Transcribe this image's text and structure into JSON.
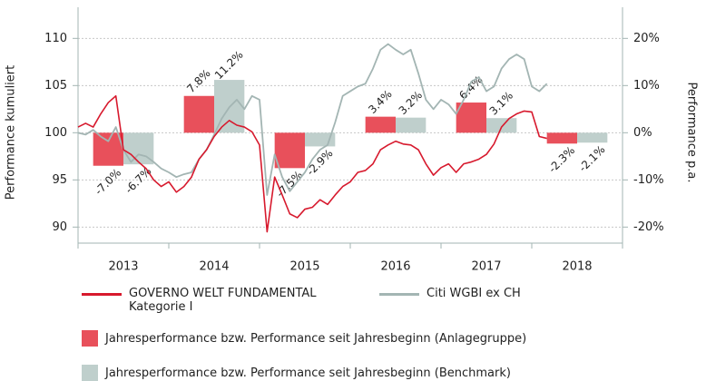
{
  "chart_data": {
    "type": "combo",
    "categories": [
      "2013",
      "2014",
      "2015",
      "2016",
      "2017",
      "2018"
    ],
    "x": [
      0,
      1,
      2,
      3,
      4,
      5,
      6,
      7,
      8,
      9,
      10,
      11,
      12,
      13,
      14,
      15,
      16,
      17,
      18,
      19,
      20,
      21,
      22,
      23,
      24,
      25,
      26,
      27,
      28,
      29,
      30,
      31,
      32,
      33,
      34,
      35,
      36,
      37,
      38,
      39,
      40,
      41,
      42,
      43,
      44,
      45,
      46,
      47,
      48,
      49,
      50,
      51,
      52,
      53,
      54,
      55,
      56,
      57,
      58,
      59,
      60,
      61,
      62
    ],
    "xlim": [
      0,
      72
    ],
    "xticks": [
      0,
      12,
      24,
      36,
      48,
      60,
      72
    ],
    "ylim": [
      88.3,
      113.3
    ],
    "yticks": [
      90,
      95,
      100,
      105,
      110
    ],
    "y2lim": [
      -23.4,
      26.6
    ],
    "y2ticks": [
      {
        "value": 20,
        "label": "20%"
      },
      {
        "value": 10,
        "label": "10%"
      },
      {
        "value": 0,
        "label": "0%"
      },
      {
        "value": -10,
        "label": "-10%"
      },
      {
        "value": -20,
        "label": "-20%"
      }
    ],
    "ylabel": "Performance kumuliert",
    "y2label": "Performance p.a.",
    "grid": true,
    "series": [
      {
        "name": "Jahresperformance bzw. Performance seit Jahresbeginn (Anlagegruppe)",
        "type": "bar",
        "axis": "y2",
        "color": "#e8505b",
        "values": [
          -7.0,
          7.8,
          -7.5,
          3.4,
          6.4,
          -2.3
        ],
        "value_labels": [
          "-7.0%",
          "7.8%",
          "-7.5%",
          "3.4%",
          "6.4%",
          "-2.3%"
        ]
      },
      {
        "name": "Jahresperformance bzw. Performance seit Jahresbeginn (Benchmark)",
        "type": "bar",
        "axis": "y2",
        "color": "#bfcfcc",
        "values": [
          -6.7,
          11.2,
          -2.9,
          3.2,
          3.1,
          -2.1
        ],
        "value_labels": [
          "-6.7%",
          "11.2%",
          "-2.9%",
          "3.2%",
          "3.1%",
          "-2.1%"
        ]
      },
      {
        "name": "Citi WGBI ex CH",
        "type": "line",
        "color": "#a3b5b3",
        "values": [
          100,
          99.8,
          100.3,
          99.6,
          99.1,
          100.6,
          98.2,
          96.9,
          97.7,
          97.5,
          96.9,
          96.2,
          95.8,
          95.3,
          95.6,
          95.8,
          97.2,
          98.2,
          99.8,
          101.5,
          102.7,
          103.5,
          102.5,
          103.9,
          103.5,
          93.4,
          97.7,
          95.3,
          93.8,
          94.8,
          95.8,
          97.2,
          98.2,
          98.7,
          101.1,
          103.9,
          104.4,
          104.9,
          105.2,
          106.8,
          108.8,
          109.4,
          108.8,
          108.3,
          108.8,
          106.3,
          103.5,
          102.5,
          103.5,
          103,
          102,
          103.5,
          105.4,
          105.9,
          104.4,
          104.9,
          106.8,
          107.8,
          108.3,
          107.8,
          104.9,
          104.4,
          105.2
        ]
      },
      {
        "name": "GOVERNO WELT FUNDAMENTAL Kategorie I",
        "type": "line",
        "color": "#d7192d",
        "values": [
          100.6,
          101,
          100.6,
          102,
          103.2,
          103.9,
          98.2,
          97.7,
          96.9,
          96.2,
          95,
          94.3,
          94.8,
          93.7,
          94.3,
          95.3,
          97.2,
          98.2,
          99.6,
          100.6,
          101.3,
          100.8,
          100.6,
          100.1,
          98.7,
          89.5,
          95.3,
          93.4,
          91.4,
          91,
          91.9,
          92.1,
          92.9,
          92.4,
          93.4,
          94.3,
          94.8,
          95.8,
          96,
          96.7,
          98.2,
          98.7,
          99.1,
          98.8,
          98.7,
          98.2,
          96.7,
          95.5,
          96.3,
          96.7,
          95.8,
          96.7,
          96.9,
          97.2,
          97.7,
          98.8,
          100.6,
          101.5,
          102,
          102.3,
          102.2,
          99.6,
          99.4
        ]
      }
    ]
  }
}
